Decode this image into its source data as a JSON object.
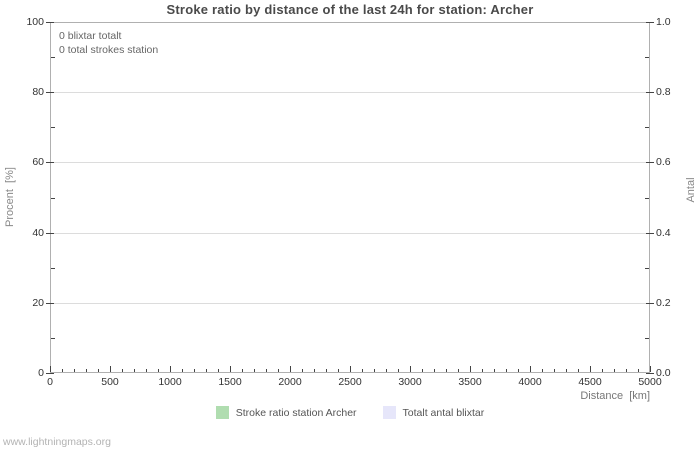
{
  "footer": "www.lightningmaps.org",
  "chart_data": {
    "type": "bar",
    "title": "Stroke ratio by distance of the last 24h for station: Archer",
    "xlabel": "Distance  [km]",
    "ylabel_left": "Procent  [%]",
    "ylabel_right": "Antal",
    "xlim": [
      0,
      5000
    ],
    "ylim_left": [
      0,
      100
    ],
    "ylim_right": [
      0.0,
      1.0
    ],
    "grid": true,
    "legend_position": "bottom",
    "x_major_ticks": [
      0,
      500,
      1000,
      1500,
      2000,
      2500,
      3000,
      3500,
      4000,
      4500,
      5000
    ],
    "x_minor_step": 100,
    "left_major_ticks": [
      0,
      20,
      40,
      60,
      80,
      100
    ],
    "left_minor_ticks": [
      10,
      30,
      50,
      70,
      90
    ],
    "right_major_ticks": [
      0.0,
      0.2,
      0.4,
      0.6,
      0.8,
      1.0
    ],
    "right_major_tick_labels": [
      "0.0",
      "0.2",
      "0.4",
      "0.6",
      "0.8",
      "1.0"
    ],
    "right_minor_ticks": [
      0.1,
      0.3,
      0.5,
      0.7,
      0.9
    ],
    "annotations": [
      "0 blixtar totalt",
      "0 total strokes station"
    ],
    "series": [
      {
        "name": "Stroke ratio station Archer",
        "color": "#b0ddb0",
        "values": []
      },
      {
        "name": "Totalt antal blixtar",
        "color": "#e6e6fa",
        "values": []
      }
    ]
  }
}
